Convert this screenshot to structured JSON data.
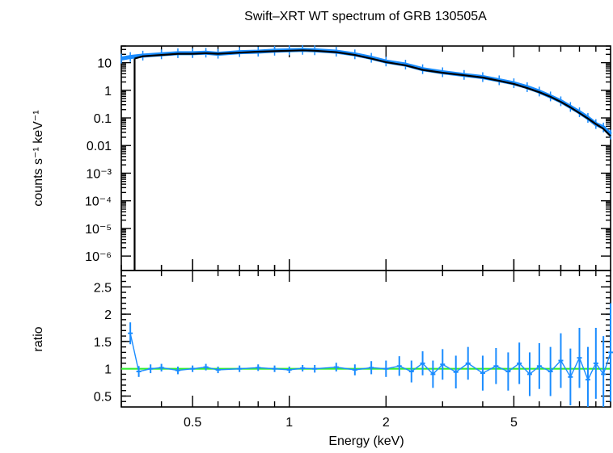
{
  "chart_data": {
    "type": "line",
    "title": "Swift–XRT WT spectrum of GRB 130505A",
    "xlabel": "Energy (keV)",
    "xscale": "log",
    "xlim": [
      0.3,
      10
    ],
    "x_tick_labels": [
      {
        "value": 0.5,
        "label": "0.5"
      },
      {
        "value": 1,
        "label": "1"
      },
      {
        "value": 2,
        "label": "2"
      },
      {
        "value": 5,
        "label": "5"
      }
    ],
    "panels": [
      {
        "name": "spectrum",
        "ylabel": "counts s⁻¹ keV⁻¹",
        "yscale": "log",
        "ylim": [
          3e-07,
          40
        ],
        "y_tick_labels": [
          {
            "value": 10,
            "label": "10"
          },
          {
            "value": 1,
            "label": "1"
          },
          {
            "value": 0.1,
            "label": "0.1"
          },
          {
            "value": 0.01,
            "label": "0.01"
          },
          {
            "value": 0.001,
            "label": "10⁻³"
          },
          {
            "value": 0.0001,
            "label": "10⁻⁴"
          },
          {
            "value": 1e-05,
            "label": "10⁻⁵"
          },
          {
            "value": 1e-06,
            "label": "10⁻⁶"
          }
        ],
        "series": [
          {
            "kind": "data",
            "color": "#1a8cff",
            "x": [
              0.3,
              0.32,
              0.35,
              0.4,
              0.45,
              0.5,
              0.55,
              0.6,
              0.7,
              0.8,
              0.9,
              1.0,
              1.1,
              1.2,
              1.4,
              1.6,
              1.8,
              2.0,
              2.3,
              2.6,
              3.0,
              3.5,
              4.0,
              4.5,
              5.0,
              5.5,
              6.0,
              6.5,
              7.0,
              7.5,
              8.0,
              8.5,
              9.0,
              9.5,
              10.0
            ],
            "y": [
              14,
              16,
              18,
              20,
              22,
              22,
              23,
              21,
              24,
              25,
              27,
              28,
              29,
              28,
              25,
              20,
              15,
              11,
              8.5,
              5.8,
              4.5,
              3.6,
              3.0,
              2.3,
              1.8,
              1.3,
              0.9,
              0.6,
              0.4,
              0.25,
              0.16,
              0.1,
              0.06,
              0.045,
              0.025
            ]
          },
          {
            "kind": "model",
            "color": "#000000",
            "x": [
              0.33,
              0.35,
              0.4,
              0.45,
              0.5,
              0.55,
              0.6,
              0.7,
              0.8,
              0.9,
              1.0,
              1.1,
              1.2,
              1.4,
              1.6,
              1.8,
              2.0,
              2.3,
              2.6,
              3.0,
              3.5,
              4.0,
              4.5,
              5.0,
              5.5,
              6.0,
              6.5,
              7.0,
              7.5,
              8.0,
              8.5,
              9.0,
              9.5,
              10.0
            ],
            "y": [
              14,
              17,
              19,
              21,
              21,
              22,
              21,
              23,
              25,
              26,
              27,
              28,
              27,
              24,
              19,
              14,
              10.5,
              8,
              5.5,
              4.3,
              3.5,
              2.9,
              2.2,
              1.7,
              1.2,
              0.85,
              0.58,
              0.38,
              0.24,
              0.15,
              0.095,
              0.06,
              0.04,
              0.022
            ]
          }
        ]
      },
      {
        "name": "ratio",
        "ylabel": "ratio",
        "yscale": "linear",
        "ylim": [
          0.3,
          2.8
        ],
        "y_tick_labels": [
          {
            "value": 0.5,
            "label": "0.5"
          },
          {
            "value": 1,
            "label": "1"
          },
          {
            "value": 1.5,
            "label": "1.5"
          },
          {
            "value": 2,
            "label": "2"
          },
          {
            "value": 2.5,
            "label": "2.5"
          }
        ],
        "reference_line": {
          "y": 1,
          "color": "#33ee33"
        },
        "series": [
          {
            "kind": "data",
            "color": "#1a8cff",
            "x": [
              0.32,
              0.34,
              0.37,
              0.4,
              0.45,
              0.5,
              0.55,
              0.6,
              0.7,
              0.8,
              0.9,
              1.0,
              1.1,
              1.2,
              1.4,
              1.6,
              1.8,
              2.0,
              2.2,
              2.4,
              2.6,
              2.8,
              3.0,
              3.3,
              3.6,
              4.0,
              4.4,
              4.8,
              5.2,
              5.6,
              6.0,
              6.5,
              7.0,
              7.5,
              8.0,
              8.5,
              9.0,
              9.5,
              10.0
            ],
            "y": [
              1.65,
              0.95,
              1.0,
              1.02,
              0.97,
              1.0,
              1.03,
              0.98,
              1.0,
              1.02,
              1.0,
              0.98,
              1.01,
              1.0,
              1.03,
              0.98,
              1.02,
              1.0,
              1.05,
              0.95,
              1.1,
              0.9,
              1.08,
              0.94,
              1.1,
              0.92,
              1.05,
              0.95,
              1.1,
              0.9,
              1.05,
              0.95,
              1.15,
              0.85,
              1.2,
              0.8,
              1.1,
              0.9,
              1.3
            ],
            "err": [
              0.2,
              0.1,
              0.08,
              0.07,
              0.07,
              0.06,
              0.06,
              0.06,
              0.06,
              0.06,
              0.06,
              0.06,
              0.06,
              0.07,
              0.08,
              0.1,
              0.12,
              0.15,
              0.18,
              0.2,
              0.22,
              0.25,
              0.28,
              0.3,
              0.3,
              0.32,
              0.33,
              0.35,
              0.38,
              0.4,
              0.42,
              0.45,
              0.5,
              0.52,
              0.55,
              0.6,
              0.65,
              0.7,
              0.9
            ]
          }
        ]
      }
    ]
  }
}
